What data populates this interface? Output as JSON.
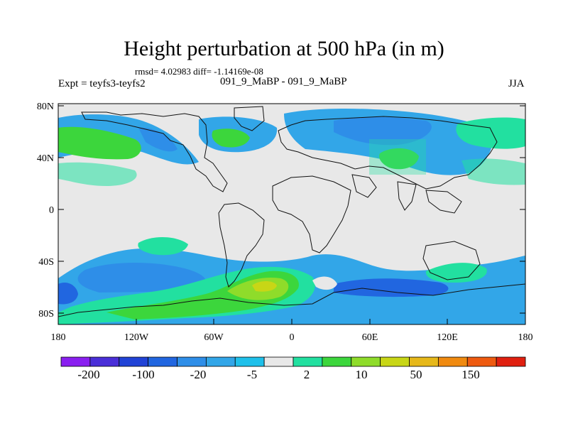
{
  "title": "Height perturbation at 500 hPa (in m)",
  "stats": "rmsd= 4.02983 diff= -1.14169e-08",
  "left_label": "Expt = teyfs3-teyfs2",
  "center_label": "091_9_MaBP - 091_9_MaBP",
  "right_label": "JJA",
  "lat_ticks": [
    "80N",
    "40N",
    "0",
    "40S",
    "80S"
  ],
  "lon_ticks": [
    "180",
    "120W",
    "60W",
    "0",
    "60E",
    "120E",
    "180"
  ],
  "colorbar": {
    "colors": [
      "#8a1ff0",
      "#4a2fd8",
      "#2143d6",
      "#2166e0",
      "#2e8ee8",
      "#32a6e8",
      "#1fc0ea",
      "#e8e8e8",
      "#22e0a0",
      "#3cd63c",
      "#8fdc2a",
      "#c8d616",
      "#e6b81a",
      "#f08a10",
      "#ee5a10",
      "#e02010"
    ],
    "labels": [
      "-200",
      "-100",
      "-20",
      "-5",
      "2",
      "10",
      "50",
      "150"
    ]
  }
}
